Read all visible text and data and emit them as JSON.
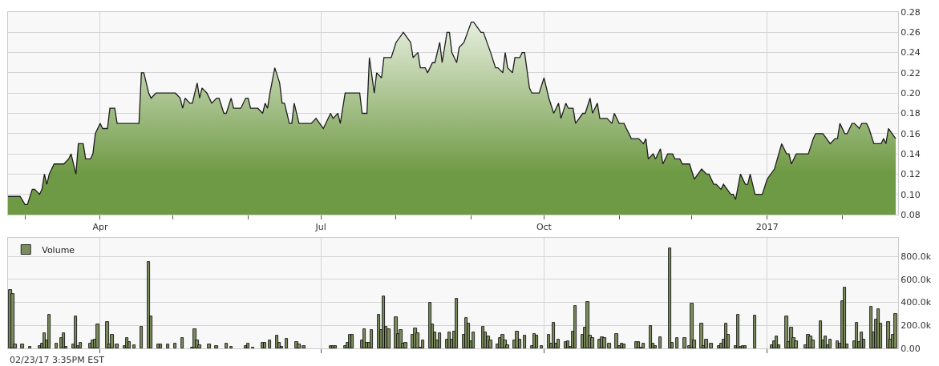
{
  "chart_data": [
    {
      "type": "area",
      "legend": false,
      "grid": true,
      "tick_labels": "xy",
      "xlim": [
        "2016-02-23",
        "2017-02-24"
      ],
      "xticks": [
        {
          "value": "2016-03-01",
          "label": null
        },
        {
          "value": "2016-04-01",
          "label": "Apr"
        },
        {
          "value": "2016-05-01",
          "label": null
        },
        {
          "value": "2016-06-01",
          "label": null
        },
        {
          "value": "2016-07-01",
          "label": "Jul"
        },
        {
          "value": "2016-08-01",
          "label": null
        },
        {
          "value": "2016-09-01",
          "label": null
        },
        {
          "value": "2016-10-01",
          "label": "Oct"
        },
        {
          "value": "2016-11-01",
          "label": null
        },
        {
          "value": "2016-12-01",
          "label": null
        },
        {
          "value": "2017-01-01",
          "label": "2017"
        },
        {
          "value": "2017-02-01",
          "label": null
        }
      ],
      "ylim": [
        0.08,
        0.28
      ],
      "yticks": [
        {
          "value": 0.08,
          "label": "0.08"
        },
        {
          "value": 0.1,
          "label": "0.10"
        },
        {
          "value": 0.12,
          "label": "0.12"
        },
        {
          "value": 0.14,
          "label": "0.14"
        },
        {
          "value": 0.16,
          "label": "0.16"
        },
        {
          "value": 0.18,
          "label": "0.18"
        },
        {
          "value": 0.2,
          "label": "0.20"
        },
        {
          "value": 0.22,
          "label": "0.22"
        },
        {
          "value": 0.24,
          "label": "0.24"
        },
        {
          "value": 0.26,
          "label": "0.26"
        },
        {
          "value": 0.28,
          "label": "0.28"
        }
      ],
      "series": [
        {
          "color": "#6f9a45",
          "x": [
            "2016-02-23",
            "2016-02-28",
            "2016-03-01",
            "2016-03-02",
            "2016-03-04",
            "2016-03-05",
            "2016-03-07",
            "2016-03-08",
            "2016-03-09",
            "2016-03-10",
            "2016-03-11",
            "2016-03-13",
            "2016-03-17",
            "2016-03-19",
            "2016-03-20",
            "2016-03-22",
            "2016-03-23",
            "2016-03-25",
            "2016-03-26",
            "2016-03-28",
            "2016-03-29",
            "2016-03-30",
            "2016-04-01",
            "2016-04-02",
            "2016-04-04",
            "2016-04-05",
            "2016-04-07",
            "2016-04-08",
            "2016-04-17",
            "2016-04-18",
            "2016-04-19",
            "2016-04-21",
            "2016-04-22",
            "2016-04-24",
            "2016-05-02",
            "2016-05-04",
            "2016-05-05",
            "2016-05-06",
            "2016-05-08",
            "2016-05-09",
            "2016-05-11",
            "2016-05-12",
            "2016-05-13",
            "2016-05-15",
            "2016-05-17",
            "2016-05-19",
            "2016-05-20",
            "2016-05-22",
            "2016-05-23",
            "2016-05-25",
            "2016-05-26",
            "2016-05-29",
            "2016-05-31",
            "2016-06-01",
            "2016-06-02",
            "2016-06-05",
            "2016-06-07",
            "2016-06-08",
            "2016-06-09",
            "2016-06-10",
            "2016-06-12",
            "2016-06-14",
            "2016-06-15",
            "2016-06-16",
            "2016-06-18",
            "2016-06-19",
            "2016-06-20",
            "2016-06-22",
            "2016-06-27",
            "2016-06-29",
            "2016-07-02",
            "2016-07-05",
            "2016-07-06",
            "2016-07-08",
            "2016-07-09",
            "2016-07-11",
            "2016-07-17",
            "2016-07-18",
            "2016-07-20",
            "2016-07-21",
            "2016-07-23",
            "2016-07-24",
            "2016-07-26",
            "2016-07-27",
            "2016-07-30",
            "2016-08-01",
            "2016-08-04",
            "2016-08-07",
            "2016-08-08",
            "2016-08-10",
            "2016-08-11",
            "2016-08-13",
            "2016-08-14",
            "2016-08-16",
            "2016-08-17",
            "2016-08-19",
            "2016-08-20",
            "2016-08-22",
            "2016-08-23",
            "2016-08-24",
            "2016-08-26",
            "2016-08-27",
            "2016-08-29",
            "2016-09-01",
            "2016-09-02",
            "2016-09-05",
            "2016-09-06",
            "2016-09-09",
            "2016-09-11",
            "2016-09-12",
            "2016-09-14",
            "2016-09-15",
            "2016-09-16",
            "2016-09-18",
            "2016-09-19",
            "2016-09-21",
            "2016-09-22",
            "2016-09-23",
            "2016-09-25",
            "2016-09-26",
            "2016-09-29",
            "2016-10-01",
            "2016-10-03",
            "2016-10-05",
            "2016-10-07",
            "2016-10-08",
            "2016-10-10",
            "2016-10-11",
            "2016-10-13",
            "2016-10-14",
            "2016-10-17",
            "2016-10-18",
            "2016-10-20",
            "2016-10-21",
            "2016-10-23",
            "2016-10-24",
            "2016-10-27",
            "2016-10-29",
            "2016-10-30",
            "2016-11-01",
            "2016-11-03",
            "2016-11-04",
            "2016-11-06",
            "2016-11-09",
            "2016-11-11",
            "2016-11-12",
            "2016-11-13",
            "2016-11-15",
            "2016-11-16",
            "2016-11-18",
            "2016-11-19",
            "2016-11-21",
            "2016-11-23",
            "2016-11-24",
            "2016-11-26",
            "2016-11-27",
            "2016-11-30",
            "2016-12-02",
            "2016-12-05",
            "2016-12-07",
            "2016-12-08",
            "2016-12-10",
            "2016-12-11",
            "2016-12-13",
            "2016-12-14",
            "2016-12-17",
            "2016-12-18",
            "2016-12-19",
            "2016-12-21",
            "2016-12-23",
            "2016-12-24",
            "2016-12-25",
            "2016-12-27",
            "2016-12-30",
            "2017-01-01",
            "2017-01-04",
            "2017-01-07",
            "2017-01-09",
            "2017-01-10",
            "2017-01-11",
            "2017-01-13",
            "2017-01-18",
            "2017-01-20",
            "2017-01-21",
            "2017-01-24",
            "2017-01-27",
            "2017-01-29",
            "2017-01-30",
            "2017-01-31",
            "2017-02-02",
            "2017-02-03",
            "2017-02-05",
            "2017-02-06",
            "2017-02-08",
            "2017-02-09",
            "2017-02-11",
            "2017-02-12",
            "2017-02-14",
            "2017-02-17",
            "2017-02-18",
            "2017-02-19",
            "2017-02-20",
            "2017-02-23"
          ],
          "values": [
            0.098,
            0.098,
            0.09,
            0.09,
            0.105,
            0.105,
            0.1,
            0.105,
            0.12,
            0.11,
            0.12,
            0.13,
            0.13,
            0.135,
            0.14,
            0.12,
            0.15,
            0.15,
            0.135,
            0.135,
            0.14,
            0.16,
            0.17,
            0.165,
            0.165,
            0.185,
            0.185,
            0.17,
            0.17,
            0.22,
            0.22,
            0.2,
            0.195,
            0.2,
            0.2,
            0.195,
            0.185,
            0.195,
            0.19,
            0.19,
            0.21,
            0.195,
            0.205,
            0.2,
            0.19,
            0.195,
            0.195,
            0.18,
            0.18,
            0.195,
            0.185,
            0.185,
            0.195,
            0.195,
            0.185,
            0.185,
            0.18,
            0.19,
            0.185,
            0.2,
            0.225,
            0.21,
            0.19,
            0.19,
            0.17,
            0.17,
            0.19,
            0.17,
            0.17,
            0.175,
            0.165,
            0.18,
            0.175,
            0.18,
            0.17,
            0.2,
            0.2,
            0.18,
            0.18,
            0.235,
            0.2,
            0.22,
            0.215,
            0.235,
            0.235,
            0.25,
            0.26,
            0.25,
            0.235,
            0.24,
            0.225,
            0.225,
            0.22,
            0.23,
            0.23,
            0.25,
            0.23,
            0.26,
            0.26,
            0.24,
            0.23,
            0.245,
            0.25,
            0.27,
            0.27,
            0.26,
            0.26,
            0.24,
            0.225,
            0.225,
            0.22,
            0.24,
            0.225,
            0.22,
            0.235,
            0.235,
            0.24,
            0.24,
            0.205,
            0.2,
            0.2,
            0.215,
            0.195,
            0.18,
            0.19,
            0.175,
            0.19,
            0.185,
            0.185,
            0.17,
            0.18,
            0.18,
            0.195,
            0.18,
            0.19,
            0.175,
            0.175,
            0.17,
            0.18,
            0.17,
            0.17,
            0.165,
            0.155,
            0.155,
            0.15,
            0.155,
            0.135,
            0.14,
            0.135,
            0.145,
            0.13,
            0.14,
            0.14,
            0.135,
            0.135,
            0.13,
            0.13,
            0.115,
            0.125,
            0.12,
            0.12,
            0.11,
            0.11,
            0.105,
            0.11,
            0.1,
            0.1,
            0.095,
            0.12,
            0.11,
            0.11,
            0.12,
            0.1,
            0.1,
            0.115,
            0.125,
            0.15,
            0.14,
            0.14,
            0.13,
            0.14,
            0.14,
            0.155,
            0.16,
            0.16,
            0.15,
            0.155,
            0.155,
            0.17,
            0.16,
            0.16,
            0.17,
            0.17,
            0.165,
            0.17,
            0.17,
            0.165,
            0.15,
            0.15,
            0.155,
            0.15,
            0.165,
            0.155
          ]
        }
      ]
    },
    {
      "type": "bar",
      "legend": "top left",
      "grid": true,
      "tick_labels": "y",
      "xlim": [
        "2016-02-23",
        "2017-02-24"
      ],
      "xticks": [
        {
          "value": "2016-04-01",
          "label": null
        },
        {
          "value": "2016-07-01",
          "label": null
        },
        {
          "value": "2016-10-01",
          "label": null
        },
        {
          "value": "2017-01-01",
          "label": null
        }
      ],
      "ylim": [
        0,
        960000
      ],
      "yticks": [
        {
          "value": 0,
          "label": "0.00"
        },
        {
          "value": 200000,
          "label": "200.0k"
        },
        {
          "value": 400000,
          "label": "400.0k"
        },
        {
          "value": 600000,
          "label": "600.0k"
        },
        {
          "value": 800000,
          "label": "800.0k"
        }
      ],
      "annotations": [
        "02/23/17 3:35PM EST"
      ],
      "series": [
        {
          "name": "Volume",
          "color": "#7d8c5e",
          "x": [
            "2016-02-24",
            "2016-02-25",
            "2016-02-26",
            "2016-02-29",
            "2016-03-03",
            "2016-03-07",
            "2016-03-08",
            "2016-03-09",
            "2016-03-10",
            "2016-03-11",
            "2016-03-14",
            "2016-03-16",
            "2016-03-17",
            "2016-03-18",
            "2016-03-21",
            "2016-03-22",
            "2016-03-23",
            "2016-03-24",
            "2016-03-28",
            "2016-03-29",
            "2016-03-30",
            "2016-03-31",
            "2016-04-04",
            "2016-04-05",
            "2016-04-06",
            "2016-04-08",
            "2016-04-11",
            "2016-04-12",
            "2016-04-13",
            "2016-04-15",
            "2016-04-18",
            "2016-04-21",
            "2016-04-22",
            "2016-04-25",
            "2016-04-26",
            "2016-04-29",
            "2016-05-02",
            "2016-05-05",
            "2016-05-09",
            "2016-05-10",
            "2016-05-11",
            "2016-05-12",
            "2016-05-16",
            "2016-05-19",
            "2016-05-23",
            "2016-05-25",
            "2016-05-31",
            "2016-06-01",
            "2016-06-03",
            "2016-06-07",
            "2016-06-08",
            "2016-06-10",
            "2016-06-13",
            "2016-06-14",
            "2016-06-15",
            "2016-06-17",
            "2016-06-21",
            "2016-06-22",
            "2016-06-24",
            "2016-07-05",
            "2016-07-06",
            "2016-07-07",
            "2016-07-11",
            "2016-07-12",
            "2016-07-13",
            "2016-07-14",
            "2016-07-18",
            "2016-07-19",
            "2016-07-20",
            "2016-07-21",
            "2016-07-22",
            "2016-07-25",
            "2016-07-26",
            "2016-07-27",
            "2016-07-28",
            "2016-07-29",
            "2016-08-01",
            "2016-08-02",
            "2016-08-03",
            "2016-08-04",
            "2016-08-05",
            "2016-08-08",
            "2016-08-09",
            "2016-08-10",
            "2016-08-11",
            "2016-08-12",
            "2016-08-15",
            "2016-08-16",
            "2016-08-17",
            "2016-08-18",
            "2016-08-19",
            "2016-08-22",
            "2016-08-23",
            "2016-08-24",
            "2016-08-25",
            "2016-08-26",
            "2016-08-29",
            "2016-08-30",
            "2016-08-31",
            "2016-09-01",
            "2016-09-02",
            "2016-09-06",
            "2016-09-07",
            "2016-09-08",
            "2016-09-09",
            "2016-09-12",
            "2016-09-13",
            "2016-09-14",
            "2016-09-15",
            "2016-09-16",
            "2016-09-19",
            "2016-09-20",
            "2016-09-21",
            "2016-09-23",
            "2016-09-26",
            "2016-09-27",
            "2016-09-28",
            "2016-09-30",
            "2016-10-03",
            "2016-10-04",
            "2016-10-05",
            "2016-10-06",
            "2016-10-07",
            "2016-10-10",
            "2016-10-11",
            "2016-10-12",
            "2016-10-13",
            "2016-10-14",
            "2016-10-17",
            "2016-10-18",
            "2016-10-19",
            "2016-10-20",
            "2016-10-21",
            "2016-10-24",
            "2016-10-25",
            "2016-10-26",
            "2016-10-28",
            "2016-10-31",
            "2016-11-01",
            "2016-11-02",
            "2016-11-03",
            "2016-11-08",
            "2016-11-09",
            "2016-11-10",
            "2016-11-11",
            "2016-11-14",
            "2016-11-15",
            "2016-11-16",
            "2016-11-18",
            "2016-11-22",
            "2016-11-23",
            "2016-11-25",
            "2016-11-28",
            "2016-11-30",
            "2016-12-01",
            "2016-12-02",
            "2016-12-05",
            "2016-12-06",
            "2016-12-07",
            "2016-12-09",
            "2016-12-12",
            "2016-12-13",
            "2016-12-14",
            "2016-12-15",
            "2016-12-16",
            "2016-12-19",
            "2016-12-20",
            "2016-12-21",
            "2016-12-22",
            "2016-12-23",
            "2016-12-27",
            "2017-01-03",
            "2017-01-04",
            "2017-01-05",
            "2017-01-06",
            "2017-01-09",
            "2017-01-10",
            "2017-01-11",
            "2017-01-12",
            "2017-01-13",
            "2017-01-17",
            "2017-01-18",
            "2017-01-19",
            "2017-01-20",
            "2017-01-23",
            "2017-01-24",
            "2017-01-25",
            "2017-01-26",
            "2017-01-27",
            "2017-01-30",
            "2017-01-31",
            "2017-02-01",
            "2017-02-02",
            "2017-02-03",
            "2017-02-06",
            "2017-02-07",
            "2017-02-08",
            "2017-02-09",
            "2017-02-10",
            "2017-02-13",
            "2017-02-14",
            "2017-02-15",
            "2017-02-16",
            "2017-02-17",
            "2017-02-20",
            "2017-02-21",
            "2017-02-22",
            "2017-02-23"
          ],
          "values": [
            510000,
            470000,
            32000,
            32000,
            13000,
            21000,
            40000,
            134000,
            67000,
            295000,
            40000,
            89000,
            134000,
            13000,
            32000,
            277000,
            19000,
            48000,
            40000,
            67000,
            75000,
            207000,
            233000,
            35000,
            115000,
            32000,
            21000,
            89000,
            54000,
            27000,
            188000,
            752000,
            277000,
            32000,
            32000,
            32000,
            40000,
            89000,
            8000,
            169000,
            67000,
            27000,
            32000,
            19000,
            40000,
            13000,
            21000,
            40000,
            8000,
            48000,
            48000,
            67000,
            113000,
            48000,
            13000,
            81000,
            59000,
            32000,
            21000,
            21000,
            21000,
            21000,
            21000,
            48000,
            121000,
            115000,
            72000,
            169000,
            48000,
            48000,
            161000,
            295000,
            161000,
            451000,
            188000,
            169000,
            268000,
            126000,
            161000,
            40000,
            48000,
            115000,
            174000,
            129000,
            8000,
            67000,
            395000,
            207000,
            142000,
            72000,
            134000,
            75000,
            142000,
            75000,
            148000,
            430000,
            120000,
            267000,
            213000,
            61000,
            141000,
            187000,
            141000,
            101000,
            67000,
            35000,
            88000,
            120000,
            67000,
            27000,
            67000,
            147000,
            75000,
            112000,
            21000,
            128000,
            112000,
            21000,
            120000,
            40000,
            221000,
            40000,
            75000,
            59000,
            61000,
            13000,
            147000,
            368000,
            115000,
            179000,
            405000,
            112000,
            88000,
            75000,
            99000,
            88000,
            40000,
            125000,
            19000,
            40000,
            35000,
            53000,
            53000,
            8000,
            40000,
            195000,
            40000,
            21000,
            99000,
            867000,
            48000,
            88000,
            93000,
            21000,
            392000,
            67000,
            213000,
            21000,
            75000,
            40000,
            21000,
            40000,
            75000,
            213000,
            115000,
            21000,
            293000,
            13000,
            21000,
            21000,
            285000,
            27000,
            61000,
            107000,
            27000,
            275000,
            53000,
            181000,
            88000,
            61000,
            27000,
            115000,
            107000,
            72000,
            240000,
            72000,
            101000,
            27000,
            80000,
            61000,
            40000,
            413000,
            528000,
            32000,
            61000,
            221000,
            59000,
            141000,
            80000,
            365000,
            141000,
            248000,
            339000,
            213000,
            232000,
            80000,
            120000,
            301000
          ]
        }
      ]
    }
  ]
}
